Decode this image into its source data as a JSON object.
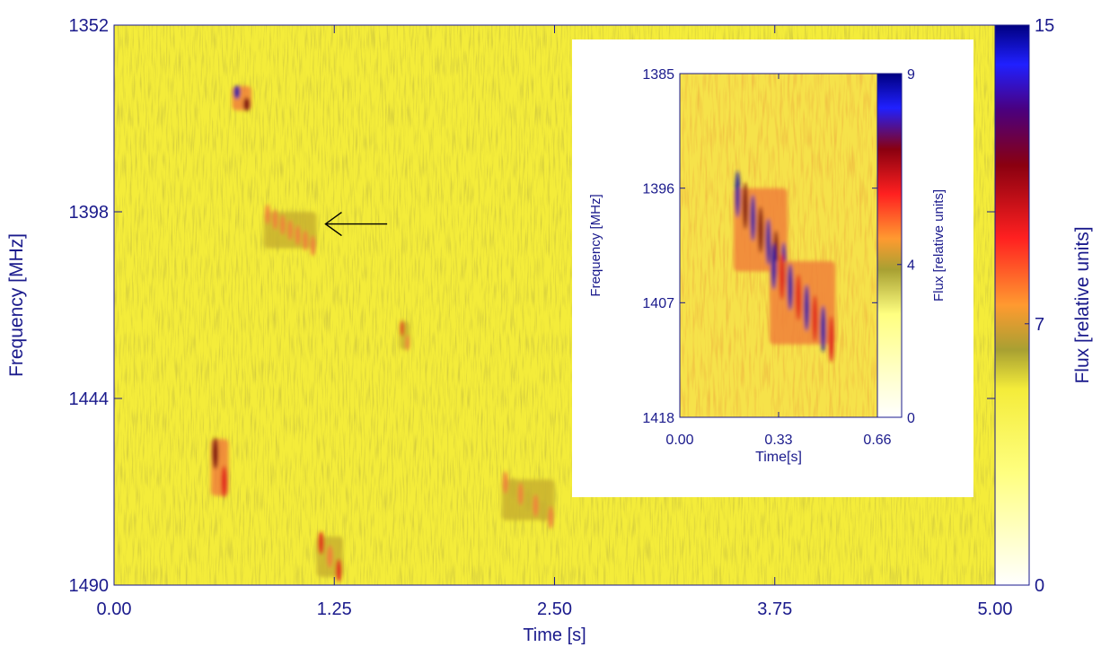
{
  "chart_data": [
    {
      "type": "heatmap",
      "panel": "main",
      "xlabel": "Time [s]",
      "ylabel": "Frequency [MHz]",
      "xlim": [
        0.0,
        5.0
      ],
      "ylim": [
        1352,
        1490
      ],
      "y_inverted": true,
      "x_ticks": [
        "0.00",
        "1.25",
        "2.50",
        "3.75",
        "5.00"
      ],
      "y_ticks": [
        "1352",
        "1398",
        "1444",
        "1490"
      ],
      "colorbar": {
        "label": "Flux [relative units]",
        "range": [
          0,
          15
        ],
        "ticks": [
          "0",
          "7",
          "15"
        ],
        "colors": [
          "#ffffff",
          "#ffff66",
          "#a8a032",
          "#ff9a30",
          "#ff2020",
          "#8a0000",
          "#2020ff",
          "#000080"
        ]
      },
      "background_color": "#f4ec3a",
      "features": [
        {
          "t": [
            0.67,
            0.78
          ],
          "f": [
            1367,
            1373
          ],
          "peak": 14
        },
        {
          "t": [
            0.85,
            1.15
          ],
          "f": [
            1398,
            1407
          ],
          "peak": 8
        },
        {
          "t": [
            0.55,
            0.65
          ],
          "f": [
            1454,
            1468
          ],
          "peak": 13
        },
        {
          "t": [
            1.62,
            1.68
          ],
          "f": [
            1425,
            1432
          ],
          "peak": 10
        },
        {
          "t": [
            2.2,
            2.5
          ],
          "f": [
            1464,
            1474
          ],
          "peak": 7
        },
        {
          "t": [
            1.15,
            1.3
          ],
          "f": [
            1478,
            1488
          ],
          "peak": 9
        }
      ],
      "annotations": [
        {
          "type": "arrow",
          "from_t": 1.55,
          "to_t": 1.2,
          "f": 1401
        }
      ]
    },
    {
      "type": "heatmap",
      "panel": "inset",
      "xlabel": "Time[s]",
      "ylabel": "Frequency [MHz]",
      "xlim": [
        0.0,
        0.66
      ],
      "ylim": [
        1385,
        1418
      ],
      "y_inverted": true,
      "x_ticks": [
        "0.00",
        "0.33",
        "0.66"
      ],
      "y_ticks": [
        "1385",
        "1396",
        "1407",
        "1418"
      ],
      "colorbar": {
        "label": "Flux [relative units]",
        "range": [
          0,
          9
        ],
        "ticks": [
          "0",
          "4",
          "9"
        ]
      },
      "features": [
        {
          "t": [
            0.18,
            0.36
          ],
          "f": [
            1396,
            1404
          ],
          "peak": 9
        },
        {
          "t": [
            0.3,
            0.52
          ],
          "f": [
            1403,
            1411
          ],
          "peak": 8
        }
      ]
    }
  ]
}
